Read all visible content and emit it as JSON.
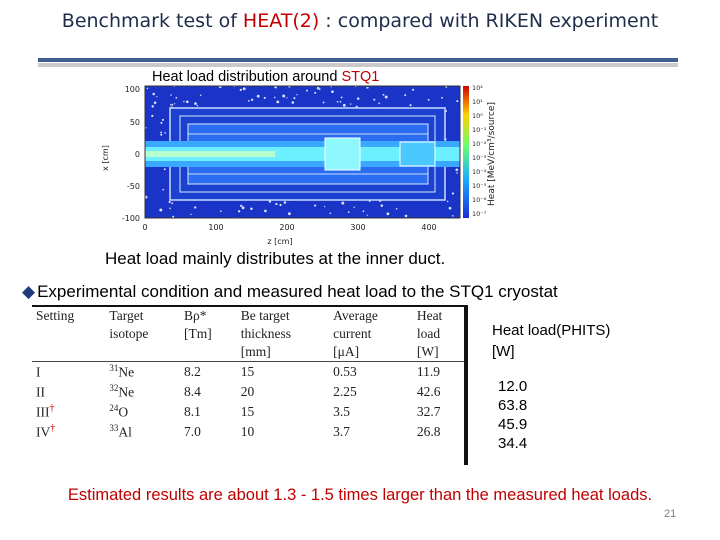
{
  "header": {
    "title_prefix": "Benchmark test of ",
    "title_highlight": "HEAT(2)",
    "title_suffix": " :  compared with RIKEN experiment"
  },
  "figure": {
    "label_prefix": "Heat load distribution around ",
    "label_highlight": "STQ1",
    "y_ticks": [
      "100",
      "50",
      "0",
      "-50",
      "-100"
    ],
    "x_ticks": [
      "0",
      "100",
      "200",
      "300",
      "400"
    ],
    "xlabel": "z [cm]",
    "ylabel": "x [cm]",
    "colorbar_ticks": [
      "10²",
      "10¹",
      "10⁰",
      "10⁻¹",
      "10⁻²",
      "10⁻³",
      "10⁻⁴",
      "10⁻⁵",
      "10⁻⁶",
      "10⁻⁷"
    ],
    "colorbar_label": "Heat [MeV/cm³/source]"
  },
  "caption": "Heat load mainly distributes at the inner duct.",
  "bullet": "Experimental condition and measured heat load to the STQ1 cryostat",
  "table": {
    "headers_row1": [
      "Setting",
      "Target",
      "Bρ*",
      "Be target",
      "Average",
      "Heat"
    ],
    "headers_row2": [
      "",
      "isotope",
      "[Tm]",
      "thickness",
      "current",
      "load"
    ],
    "headers_row3": [
      "",
      "",
      "",
      "[mm]",
      "[μA]",
      "[W]"
    ],
    "rows": [
      {
        "setting": "I",
        "iso_mass": "31",
        "iso": "Ne",
        "brho": "8.2",
        "be": "15",
        "cur": "0.53",
        "heat": "11.9",
        "dagger": ""
      },
      {
        "setting": "II",
        "iso_mass": "32",
        "iso": "Ne",
        "brho": "8.4",
        "be": "20",
        "cur": "2.25",
        "heat": "42.6",
        "dagger": ""
      },
      {
        "setting": "III",
        "iso_mass": "24",
        "iso": "O",
        "brho": "8.1",
        "be": "15",
        "cur": "3.5",
        "heat": "32.7",
        "dagger": "†"
      },
      {
        "setting": "IV",
        "iso_mass": "33",
        "iso": "Al",
        "brho": "7.0",
        "be": "10",
        "cur": "3.7",
        "heat": "26.8",
        "dagger": "†"
      }
    ]
  },
  "phits": {
    "header_line1": "Heat load(PHITS)",
    "header_line2": "[W]",
    "values": [
      "12.0",
      "63.8",
      "45.9",
      "34.4"
    ]
  },
  "note": "Estimated results are about 1.3 - 1.5 times larger than the measured heat loads.",
  "page_number": "21"
}
